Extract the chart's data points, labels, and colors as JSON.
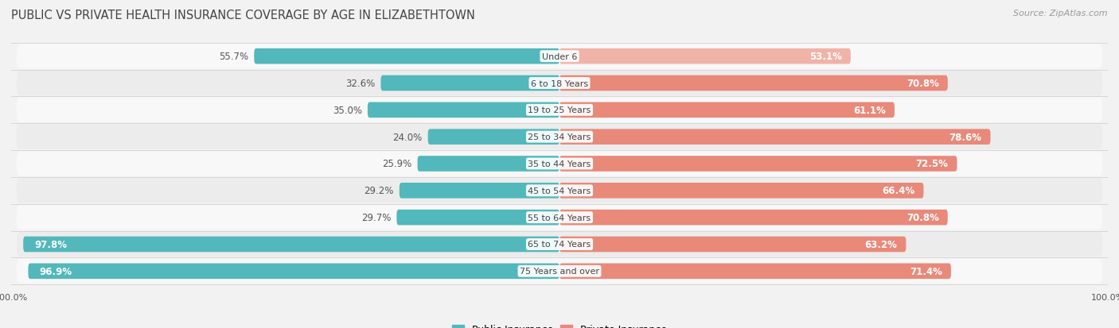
{
  "title": "PUBLIC VS PRIVATE HEALTH INSURANCE COVERAGE BY AGE IN ELIZABETHTOWN",
  "source": "Source: ZipAtlas.com",
  "categories": [
    "Under 6",
    "6 to 18 Years",
    "19 to 25 Years",
    "25 to 34 Years",
    "35 to 44 Years",
    "45 to 54 Years",
    "55 to 64 Years",
    "65 to 74 Years",
    "75 Years and over"
  ],
  "public_values": [
    55.7,
    32.6,
    35.0,
    24.0,
    25.9,
    29.2,
    29.7,
    97.8,
    96.9
  ],
  "private_values": [
    53.1,
    70.8,
    61.1,
    78.6,
    72.5,
    66.4,
    70.8,
    63.2,
    71.4
  ],
  "public_color": "#52b8bc",
  "private_color": "#e8897a",
  "private_color_light": "#f0b3a8",
  "background_color": "#f2f2f2",
  "row_colors": [
    "#f8f8f8",
    "#ececec"
  ],
  "title_fontsize": 10.5,
  "bar_label_fontsize": 8.5,
  "cat_label_fontsize": 8.0,
  "legend_fontsize": 9.0,
  "source_fontsize": 8.0
}
